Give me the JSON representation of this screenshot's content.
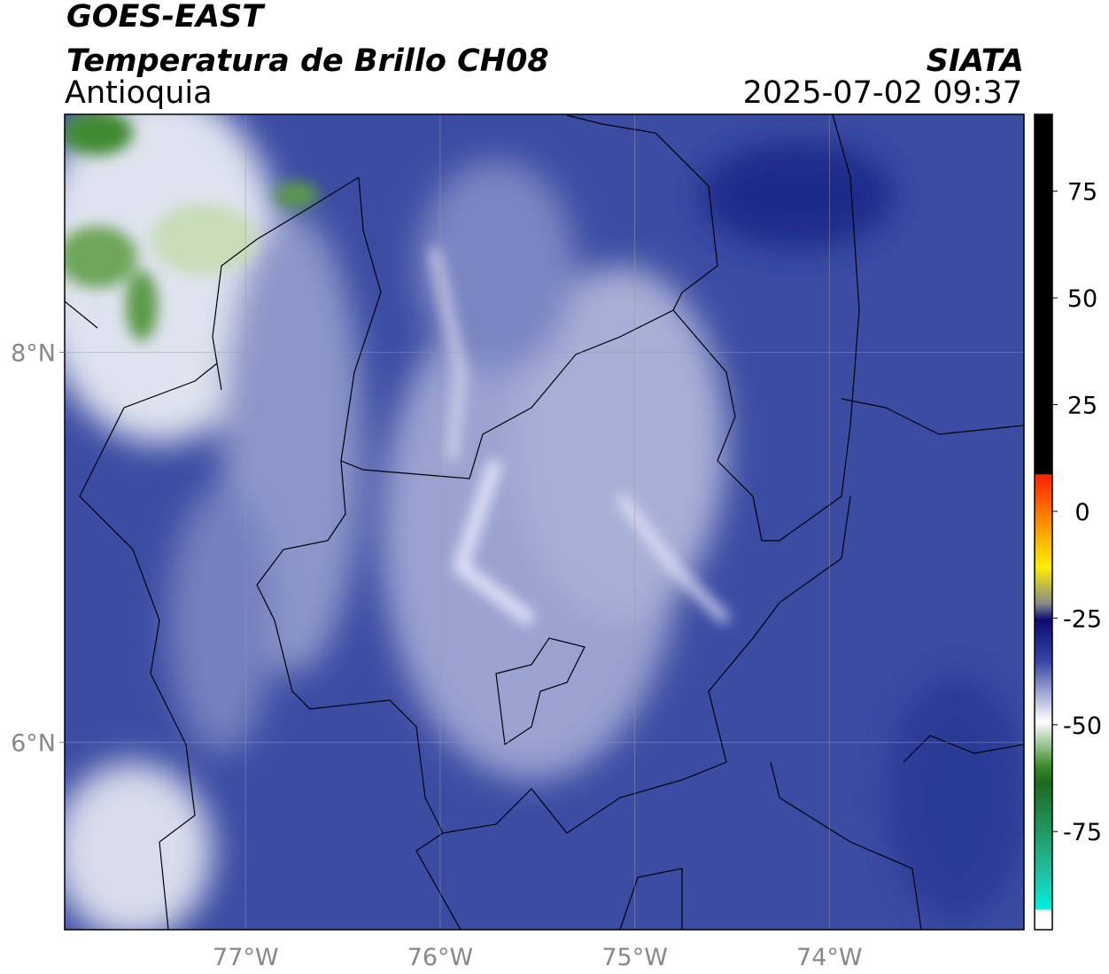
{
  "chart_data": {
    "type": "map",
    "title": "GOES-EAST",
    "subtitle": "Temperatura de Brillo CH08",
    "region": "Antioquia",
    "source": "SIATA",
    "timestamp": "2025-07-02 09:37",
    "xlim": [
      -77.93,
      -73.0
    ],
    "ylim": [
      5.04,
      9.22
    ],
    "xticks": [
      {
        "value": -77,
        "label": "77°W"
      },
      {
        "value": -76,
        "label": "76°W"
      },
      {
        "value": -75,
        "label": "75°W"
      },
      {
        "value": -74,
        "label": "74°W"
      }
    ],
    "yticks": [
      {
        "value": 6,
        "label": "6°N"
      },
      {
        "value": 8,
        "label": "8°N"
      }
    ],
    "grid": true,
    "colorbar": {
      "lim": [
        -98,
        93
      ],
      "ticks": [
        -75,
        -50,
        -25,
        0,
        25,
        50,
        75
      ]
    }
  }
}
